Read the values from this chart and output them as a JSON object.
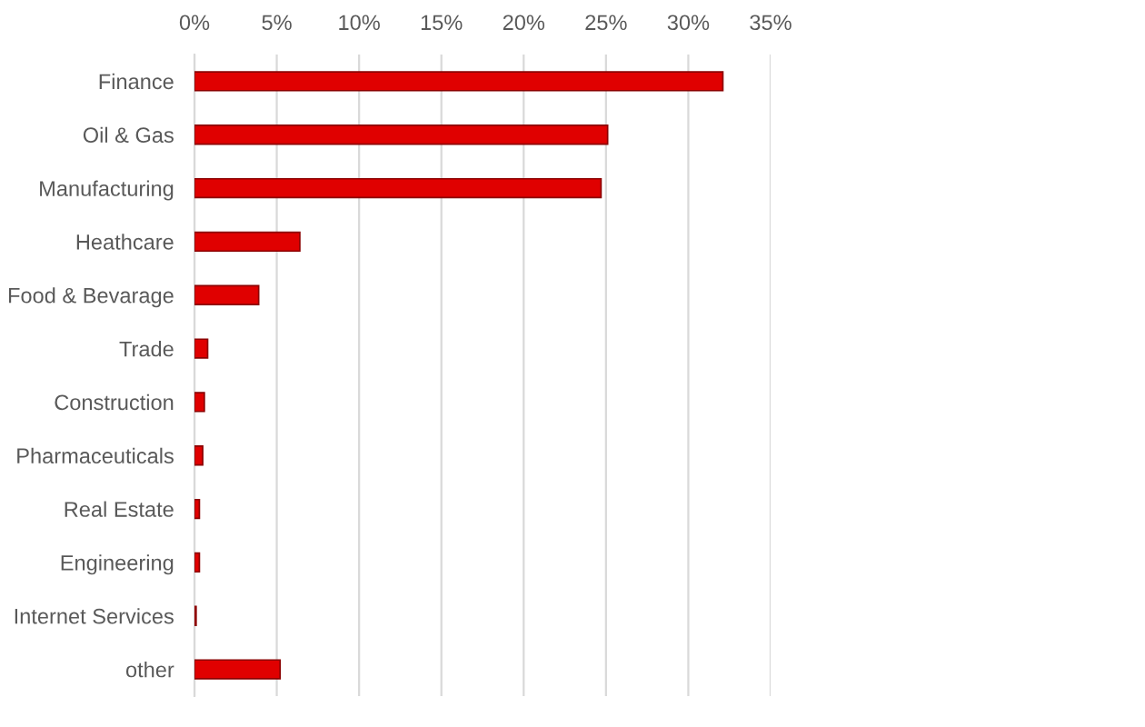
{
  "chart_data": {
    "type": "bar",
    "orientation": "horizontal",
    "categories": [
      "Finance",
      "Oil & Gas",
      "Manufacturing",
      "Heathcare",
      "Food & Bevarage",
      "Trade",
      "Construction",
      "Pharmaceuticals",
      "Real Estate",
      "Engineering",
      "Internet Services",
      "other"
    ],
    "values": [
      32.1,
      25.1,
      24.7,
      6.4,
      3.9,
      0.8,
      0.6,
      0.5,
      0.3,
      0.3,
      0.1,
      5.2
    ],
    "color": "#e00000",
    "xlim": [
      0,
      35
    ],
    "xticks": [
      {
        "value": 0,
        "label": "0%"
      },
      {
        "value": 5,
        "label": "5%"
      },
      {
        "value": 10,
        "label": "10%"
      },
      {
        "value": 15,
        "label": "15%"
      },
      {
        "value": 20,
        "label": "20%"
      },
      {
        "value": 25,
        "label": "25%"
      },
      {
        "value": 30,
        "label": "30%"
      },
      {
        "value": 35,
        "label": "35%"
      }
    ],
    "grid": "x"
  }
}
